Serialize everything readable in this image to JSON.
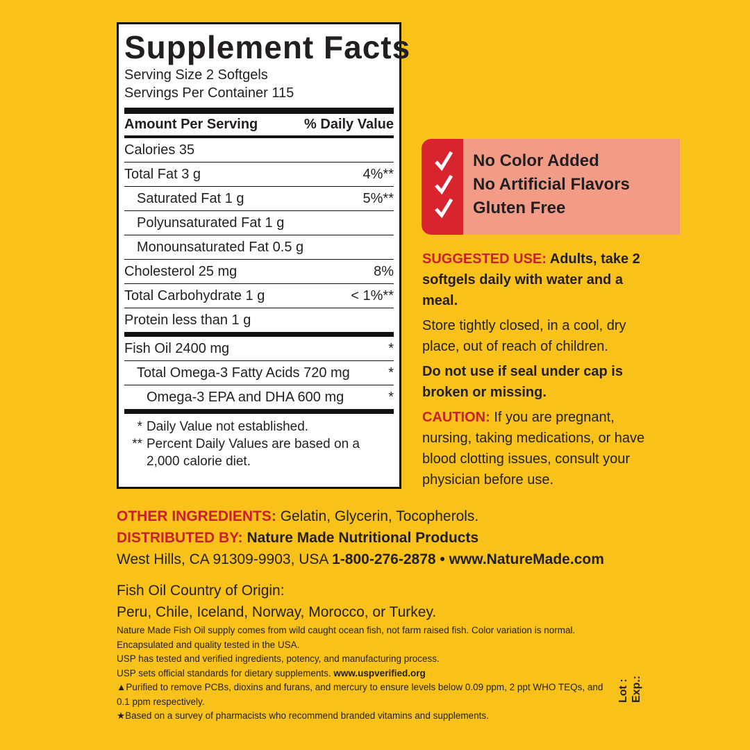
{
  "facts": {
    "title": "Supplement Facts",
    "serving_size": "Serving Size 2 Softgels",
    "servings_per_container": "Servings Per Container 115",
    "header": [
      "Amount Per Serving",
      "% Daily Value"
    ],
    "rows": [
      [
        "Calories  35"
      ],
      [
        "Total Fat  3 g",
        "4%**"
      ],
      [
        "Saturated Fat  1 g",
        "5%**"
      ],
      [
        "Polyunsaturated Fat  1 g"
      ],
      [
        "Monounsaturated Fat  0.5 g"
      ],
      [
        "Cholesterol  25 mg",
        "8%"
      ],
      [
        "Total Carbohydrate  1 g",
        "< 1%**"
      ],
      [
        "Protein  less than 1 g"
      ],
      [
        "Fish Oil  2400 mg",
        "*"
      ],
      [
        "Total Omega-3 Fatty Acids  720 mg",
        "*"
      ],
      [
        "Omega-3 EPA and DHA 600 mg",
        "*"
      ]
    ],
    "footnotes": [
      [
        "*",
        "Daily Value not established."
      ],
      [
        "**",
        "Percent Daily Values are based on a 2,000 calorie diet."
      ]
    ]
  },
  "badges": [
    "No Color Added",
    "No Artificial Flavors",
    "Gluten Free"
  ],
  "suggested_use": {
    "label": "SUGGESTED USE:",
    "text": "Adults, take 2 softgels daily with water and a meal."
  },
  "storage": "Store tightly closed, in a cool, dry place, out of reach of children.",
  "seal": "Do not use if seal under cap is broken or missing.",
  "caution": {
    "label": "CAUTION:",
    "text": "If you are pregnant, nursing, taking medications, or have blood clotting issues, consult your physician before use."
  },
  "other_ingredients": {
    "label": "OTHER INGREDIENTS:",
    "text": "Gelatin, Glycerin, Tocopherols."
  },
  "distributor": {
    "label": "DISTRIBUTED BY:",
    "name": "Nature Made Nutritional Products",
    "address": "West Hills, CA 91309-9903, USA",
    "phone": "1-800-276-2878",
    "separator": "•",
    "website": "www.NatureMade.com"
  },
  "origin": {
    "label": "Fish Oil Country of Origin:",
    "countries": "Peru, Chile, Iceland, Norway, Morocco, or Turkey."
  },
  "fine_print": [
    "Nature Made Fish Oil supply comes from wild caught ocean fish, not farm raised fish. Color variation is normal.",
    "Encapsulated and quality tested in the USA.",
    "USP has tested and verified ingredients, potency, and manufacturing process.",
    "USP sets official standards for dietary supplements.",
    "▲Purified to remove PCBs, dioxins and furans, and mercury to ensure levels below 0.09 ppm, 2 ppt WHO TEQs, and 0.1 ppm respectively.",
    "★Based on a survey of pharmacists who recommend branded vitamins and supplements."
  ],
  "usp_url": "www.uspverified.org",
  "lot": "Lot :",
  "exp": "Exp.:"
}
